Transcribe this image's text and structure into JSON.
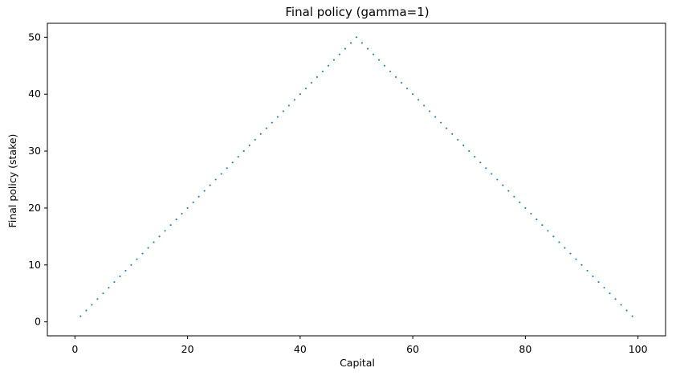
{
  "chart_data": {
    "type": "scatter",
    "title": "Final policy (gamma=1)",
    "xlabel": "Capital",
    "ylabel": "Final policy (stake)",
    "xlim": [
      -4.9,
      104.9
    ],
    "ylim": [
      -2.45,
      52.45
    ],
    "xticks": [
      0,
      20,
      40,
      60,
      80,
      100
    ],
    "yticks": [
      0,
      10,
      20,
      30,
      40,
      50
    ],
    "grid": false,
    "series": [
      {
        "color": "#1f77b4",
        "marker": "dot",
        "x": [
          1,
          2,
          3,
          4,
          5,
          6,
          7,
          8,
          9,
          10,
          11,
          12,
          13,
          14,
          15,
          16,
          17,
          18,
          19,
          20,
          21,
          22,
          23,
          24,
          25,
          26,
          27,
          28,
          29,
          30,
          31,
          32,
          33,
          34,
          35,
          36,
          37,
          38,
          39,
          40,
          41,
          42,
          43,
          44,
          45,
          46,
          47,
          48,
          49,
          50,
          51,
          52,
          53,
          54,
          55,
          56,
          57,
          58,
          59,
          60,
          61,
          62,
          63,
          64,
          65,
          66,
          67,
          68,
          69,
          70,
          71,
          72,
          73,
          74,
          75,
          76,
          77,
          78,
          79,
          80,
          81,
          82,
          83,
          84,
          85,
          86,
          87,
          88,
          89,
          90,
          91,
          92,
          93,
          94,
          95,
          96,
          97,
          98,
          99
        ],
        "y": [
          1,
          2,
          3,
          4,
          5,
          6,
          7,
          8,
          9,
          10,
          11,
          12,
          13,
          14,
          15,
          16,
          17,
          18,
          19,
          20,
          21,
          22,
          23,
          24,
          25,
          26,
          27,
          28,
          29,
          30,
          31,
          32,
          33,
          34,
          35,
          36,
          37,
          38,
          39,
          40,
          41,
          42,
          43,
          44,
          45,
          46,
          47,
          48,
          49,
          50,
          49,
          48,
          47,
          46,
          45,
          44,
          43,
          42,
          41,
          40,
          39,
          38,
          37,
          36,
          35,
          34,
          33,
          32,
          31,
          30,
          29,
          28,
          27,
          26,
          25,
          24,
          23,
          22,
          21,
          20,
          19,
          18,
          17,
          16,
          15,
          14,
          13,
          12,
          11,
          10,
          9,
          8,
          7,
          6,
          5,
          4,
          3,
          2,
          1
        ]
      }
    ]
  }
}
